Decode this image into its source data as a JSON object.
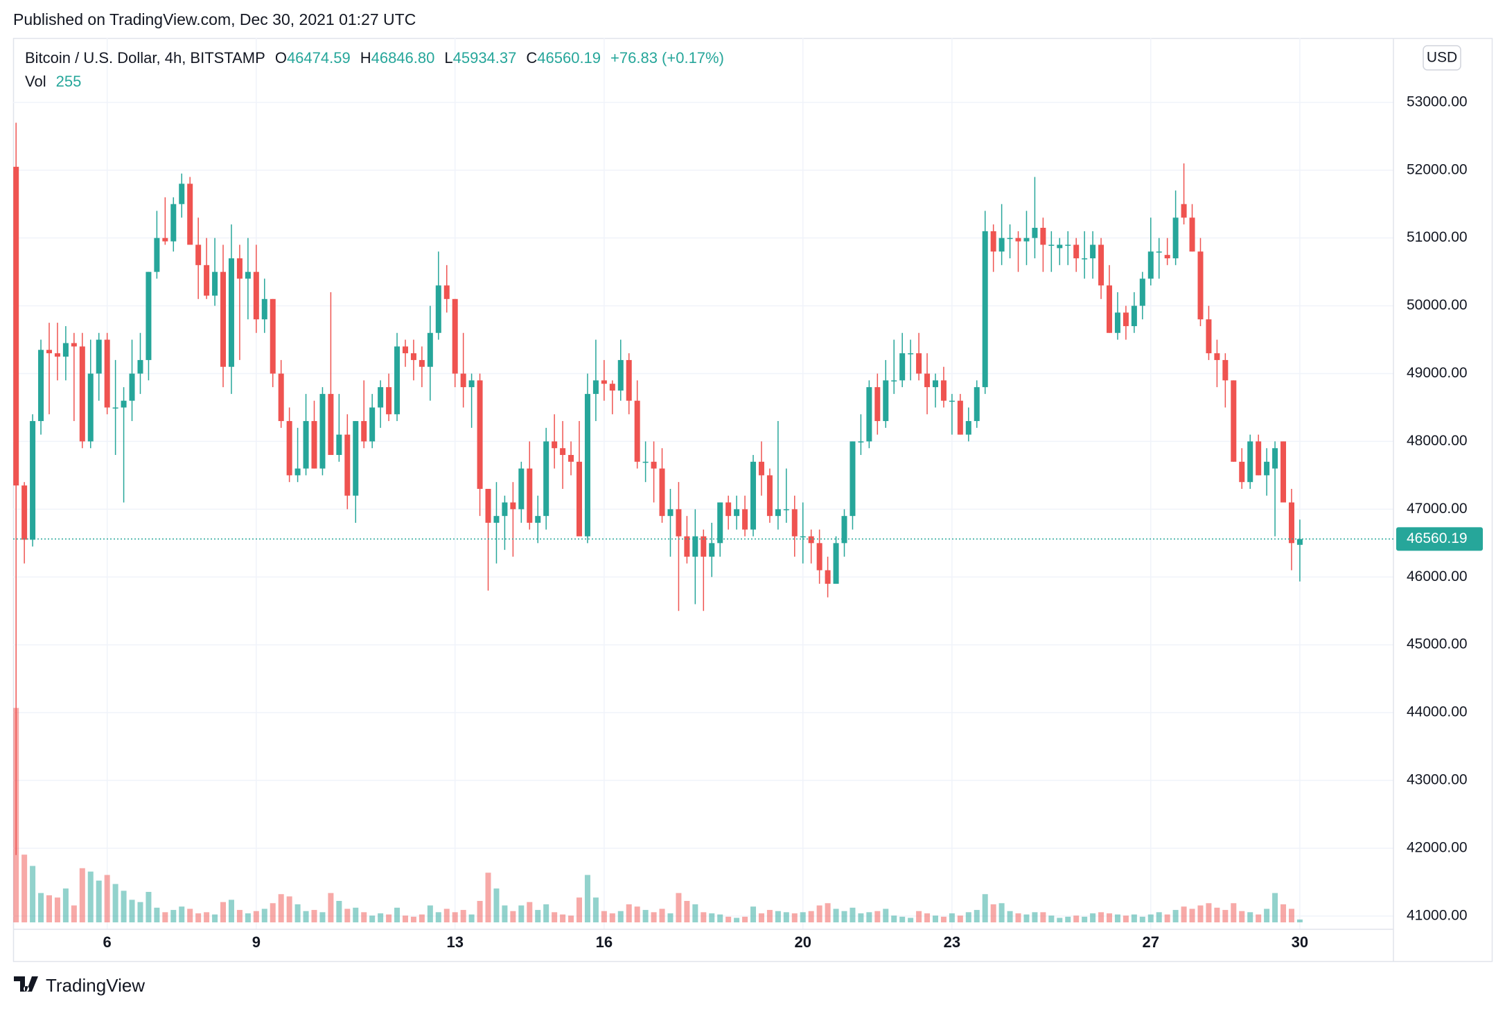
{
  "header": "Published on TradingView.com, Dec 30, 2021 01:27 UTC",
  "footer": "TradingView",
  "chart_data": {
    "type": "candlestick",
    "title": "Bitcoin / U.S. Dollar, 4h, BITSTAMP",
    "ohlc_letters": [
      "O",
      "H",
      "L",
      "C"
    ],
    "last_value_labels": [
      "46474.59",
      "46846.80",
      "45934.37",
      "46560.19"
    ],
    "change": "+76.83 (+0.17%)",
    "volume_label": "Vol",
    "currency": "USD",
    "up_color": "#26a69a",
    "down_color": "#ef5350",
    "candles": [
      [
        52050,
        52700,
        41900,
        47350
      ],
      [
        47350,
        47400,
        46200,
        46550
      ],
      [
        46550,
        48400,
        46450,
        48300
      ],
      [
        48300,
        49500,
        48100,
        49350
      ],
      [
        49350,
        49750,
        48400,
        49300
      ],
      [
        49300,
        49750,
        48900,
        49250
      ],
      [
        49250,
        49700,
        48900,
        49450
      ],
      [
        49450,
        49600,
        48300,
        49400
      ],
      [
        49400,
        49600,
        47900,
        48000
      ],
      [
        48000,
        49500,
        47900,
        49000
      ],
      [
        49000,
        49600,
        48600,
        49500
      ],
      [
        49500,
        49600,
        48400,
        48500
      ],
      [
        48500,
        49200,
        47800,
        48500
      ],
      [
        48500,
        48800,
        47100,
        48600
      ],
      [
        48600,
        49500,
        48300,
        49000
      ],
      [
        49000,
        49600,
        48700,
        49200
      ],
      [
        49200,
        50500,
        48900,
        50500
      ],
      [
        50500,
        51400,
        50400,
        51000
      ],
      [
        51000,
        51600,
        50900,
        50950
      ],
      [
        50950,
        51600,
        50800,
        51500
      ],
      [
        51500,
        51950,
        51300,
        51800
      ],
      [
        51800,
        51900,
        51000,
        50900
      ],
      [
        50900,
        51300,
        50100,
        50600
      ],
      [
        50600,
        51000,
        50100,
        50150
      ],
      [
        50150,
        51000,
        50000,
        50500
      ],
      [
        50500,
        50900,
        48800,
        49100
      ],
      [
        49100,
        51200,
        48700,
        50700
      ],
      [
        50700,
        50900,
        49200,
        50400
      ],
      [
        50400,
        51000,
        49800,
        50500
      ],
      [
        50500,
        50900,
        49600,
        49800
      ],
      [
        49800,
        50400,
        49600,
        50100
      ],
      [
        50100,
        50100,
        48800,
        49000
      ],
      [
        49000,
        49200,
        48200,
        48300
      ],
      [
        48300,
        48500,
        47400,
        47500
      ],
      [
        47500,
        48200,
        47400,
        47600
      ],
      [
        47600,
        48700,
        47500,
        48300
      ],
      [
        48300,
        48600,
        47600,
        47600
      ],
      [
        47600,
        48800,
        47500,
        48700
      ],
      [
        48700,
        50200,
        47900,
        47800
      ],
      [
        47800,
        48700,
        47700,
        48100
      ],
      [
        48100,
        48400,
        47000,
        47200
      ],
      [
        47200,
        48300,
        46800,
        48300
      ],
      [
        48300,
        48900,
        47900,
        48000
      ],
      [
        48000,
        48700,
        47900,
        48500
      ],
      [
        48500,
        48900,
        48200,
        48800
      ],
      [
        48800,
        49000,
        48300,
        48400
      ],
      [
        48400,
        49600,
        48300,
        49400
      ],
      [
        49400,
        49500,
        49100,
        49300
      ],
      [
        49300,
        49500,
        48900,
        49200
      ],
      [
        49200,
        49400,
        48800,
        49100
      ],
      [
        49100,
        50000,
        48600,
        49600
      ],
      [
        49600,
        50800,
        49500,
        50300
      ],
      [
        50300,
        50600,
        49900,
        50100
      ],
      [
        50100,
        50100,
        48800,
        49000
      ],
      [
        49000,
        49600,
        48500,
        48800
      ],
      [
        48800,
        49000,
        48200,
        48900
      ],
      [
        48900,
        49000,
        46900,
        47300
      ],
      [
        47300,
        47300,
        45800,
        46800
      ],
      [
        46800,
        47400,
        46200,
        46900
      ],
      [
        46900,
        47200,
        46400,
        47100
      ],
      [
        47100,
        47400,
        46300,
        47000
      ],
      [
        47000,
        47700,
        46800,
        47600
      ],
      [
        47600,
        48000,
        46700,
        46800
      ],
      [
        46800,
        47200,
        46500,
        46900
      ],
      [
        46900,
        48200,
        46700,
        48000
      ],
      [
        48000,
        48400,
        47600,
        47900
      ],
      [
        47900,
        48300,
        47300,
        47800
      ],
      [
        47800,
        48000,
        47500,
        47700
      ],
      [
        47700,
        48300,
        46600,
        46600
      ],
      [
        46600,
        49000,
        46500,
        48700
      ],
      [
        48700,
        49500,
        48300,
        48900
      ],
      [
        48900,
        49200,
        48600,
        48850
      ],
      [
        48850,
        48900,
        48400,
        48750
      ],
      [
        48750,
        49500,
        48600,
        49200
      ],
      [
        49200,
        49300,
        48400,
        48600
      ],
      [
        48600,
        48900,
        47600,
        47700
      ],
      [
        47700,
        48000,
        47400,
        47700
      ],
      [
        47700,
        48000,
        47100,
        47600
      ],
      [
        47600,
        47900,
        46800,
        46900
      ],
      [
        46900,
        47300,
        46300,
        47000
      ],
      [
        47000,
        47400,
        45500,
        46600
      ],
      [
        46600,
        46900,
        46200,
        46300
      ],
      [
        46300,
        47000,
        45600,
        46600
      ],
      [
        46600,
        46700,
        45500,
        46300
      ],
      [
        46300,
        46800,
        46000,
        46500
      ],
      [
        46500,
        47100,
        46300,
        47100
      ],
      [
        47100,
        47200,
        46700,
        46900
      ],
      [
        46900,
        47200,
        46700,
        47000
      ],
      [
        47000,
        47200,
        46600,
        46700
      ],
      [
        46700,
        47800,
        46600,
        47700
      ],
      [
        47700,
        48000,
        47200,
        47500
      ],
      [
        47500,
        47600,
        46800,
        46900
      ],
      [
        46900,
        48300,
        46700,
        47000
      ],
      [
        47000,
        47600,
        46800,
        47000
      ],
      [
        47000,
        47200,
        46300,
        46600
      ],
      [
        46600,
        47100,
        46200,
        46600
      ],
      [
        46600,
        46700,
        46200,
        46500
      ],
      [
        46500,
        46700,
        45900,
        46100
      ],
      [
        46100,
        46300,
        45700,
        45900
      ],
      [
        45900,
        46600,
        45900,
        46500
      ],
      [
        46500,
        47000,
        46300,
        46900
      ],
      [
        46900,
        48000,
        46700,
        48000
      ],
      [
        48000,
        48400,
        47800,
        48000
      ],
      [
        48000,
        48900,
        47900,
        48800
      ],
      [
        48800,
        49000,
        48100,
        48300
      ],
      [
        48300,
        49200,
        48200,
        48900
      ],
      [
        48900,
        49500,
        48700,
        48900
      ],
      [
        48900,
        49600,
        48800,
        49300
      ],
      [
        49300,
        49500,
        48900,
        49300
      ],
      [
        49300,
        49600,
        48900,
        49000
      ],
      [
        49000,
        49300,
        48400,
        48800
      ],
      [
        48800,
        49000,
        48500,
        48900
      ],
      [
        48900,
        49100,
        48500,
        48600
      ],
      [
        48600,
        48700,
        48100,
        48600
      ],
      [
        48600,
        48700,
        48100,
        48100
      ],
      [
        48100,
        48500,
        48000,
        48300
      ],
      [
        48300,
        48900,
        48200,
        48800
      ],
      [
        48800,
        51400,
        48700,
        51100
      ],
      [
        51100,
        51200,
        50500,
        50800
      ],
      [
        50800,
        51500,
        50600,
        51000
      ],
      [
        51000,
        51200,
        50700,
        51000
      ],
      [
        51000,
        51100,
        50500,
        50950
      ],
      [
        50950,
        51400,
        50600,
        51000
      ],
      [
        51000,
        51900,
        50700,
        51150
      ],
      [
        51150,
        51300,
        50500,
        50900
      ],
      [
        50900,
        51100,
        50500,
        50900
      ],
      [
        50850,
        51000,
        50600,
        50900
      ],
      [
        50900,
        51100,
        50600,
        50900
      ],
      [
        50900,
        51000,
        50500,
        50700
      ],
      [
        50700,
        51100,
        50400,
        50700
      ],
      [
        50700,
        51100,
        50400,
        50900
      ],
      [
        50900,
        51000,
        50100,
        50300
      ],
      [
        50300,
        50600,
        49600,
        49600
      ],
      [
        49600,
        50200,
        49500,
        49900
      ],
      [
        49900,
        50000,
        49500,
        49700
      ],
      [
        49700,
        50200,
        49600,
        50000
      ],
      [
        50000,
        50500,
        49800,
        50400
      ],
      [
        50400,
        51300,
        50300,
        50800
      ],
      [
        50800,
        51000,
        50400,
        50800
      ],
      [
        50750,
        51000,
        50600,
        50700
      ],
      [
        50700,
        51700,
        50600,
        51300
      ],
      [
        51500,
        52100,
        51200,
        51300
      ],
      [
        51300,
        51500,
        50800,
        50800
      ],
      [
        50800,
        51000,
        49700,
        49800
      ],
      [
        49800,
        50000,
        49200,
        49300
      ],
      [
        49300,
        49500,
        48800,
        49200
      ],
      [
        49200,
        49300,
        48500,
        48900
      ],
      [
        48900,
        48900,
        47700,
        47700
      ],
      [
        47700,
        47900,
        47300,
        47400
      ],
      [
        47400,
        48100,
        47300,
        48000
      ],
      [
        48000,
        48100,
        47500,
        47500
      ],
      [
        47500,
        47900,
        47200,
        47700
      ],
      [
        47600,
        48000,
        46600,
        47900
      ],
      [
        48000,
        48000,
        47200,
        47100
      ],
      [
        47100,
        47300,
        46100,
        46500
      ],
      [
        46474.59,
        46846.8,
        45934.37,
        46560.19
      ]
    ],
    "volume": [
      19000,
      6000,
      5000,
      2600,
      2400,
      2200,
      3000,
      1500,
      4800,
      4500,
      3700,
      4200,
      3400,
      2800,
      2000,
      1800,
      2700,
      1300,
      900,
      1100,
      1400,
      1200,
      800,
      900,
      700,
      1800,
      2000,
      1100,
      800,
      1000,
      1200,
      1700,
      2500,
      2300,
      1600,
      1000,
      1100,
      900,
      2600,
      1900,
      1200,
      1300,
      900,
      600,
      800,
      700,
      1300,
      600,
      500,
      700,
      1500,
      900,
      1200,
      900,
      1100,
      700,
      1900,
      4400,
      3000,
      1500,
      1000,
      1500,
      1800,
      1100,
      1600,
      900,
      700,
      600,
      2200,
      4200,
      2200,
      1000,
      800,
      1000,
      1600,
      1400,
      1100,
      900,
      1200,
      800,
      2600,
      1900,
      1600,
      900,
      800,
      700,
      500,
      400,
      500,
      1400,
      800,
      1100,
      1000,
      900,
      800,
      900,
      1000,
      1500,
      1700,
      1200,
      1000,
      1300,
      800,
      900,
      1000,
      1200,
      600,
      500,
      400,
      1000,
      800,
      600,
      500,
      800,
      600,
      900,
      1100,
      2500,
      1600,
      1700,
      1000,
      800,
      700,
      900,
      900,
      600,
      400,
      500,
      600,
      500,
      800,
      900,
      800,
      700,
      600,
      700,
      500,
      700,
      900,
      700,
      1100,
      1400,
      1200,
      1500,
      1700,
      1300,
      1100,
      1700,
      1000,
      900,
      700,
      1200,
      2600,
      1600,
      1200,
      255
    ],
    "xlim": [
      -0.35,
      166.3
    ],
    "xticks": [
      {
        "value": 11,
        "label": "6"
      },
      {
        "value": 29,
        "label": "9"
      },
      {
        "value": 53,
        "label": "13"
      },
      {
        "value": 71,
        "label": "16"
      },
      {
        "value": 95,
        "label": "20"
      },
      {
        "value": 113,
        "label": "23"
      },
      {
        "value": 137,
        "label": "27"
      },
      {
        "value": 155,
        "label": "30"
      }
    ],
    "ylim": [
      40335,
      53948
    ],
    "yticks": [
      {
        "value": 53000,
        "label": "53000.00"
      },
      {
        "value": 52000,
        "label": "52000.00"
      },
      {
        "value": 51000,
        "label": "51000.00"
      },
      {
        "value": 50000,
        "label": "50000.00"
      },
      {
        "value": 49000,
        "label": "49000.00"
      },
      {
        "value": 48000,
        "label": "48000.00"
      },
      {
        "value": 47000,
        "label": "47000.00"
      },
      {
        "value": 46000,
        "label": "46000.00"
      },
      {
        "value": 45000,
        "label": "45000.00"
      },
      {
        "value": 44000,
        "label": "44000.00"
      },
      {
        "value": 43000,
        "label": "43000.00"
      },
      {
        "value": 42000,
        "label": "42000.00"
      },
      {
        "value": 41000,
        "label": "41000.00"
      }
    ],
    "grid": true
  }
}
